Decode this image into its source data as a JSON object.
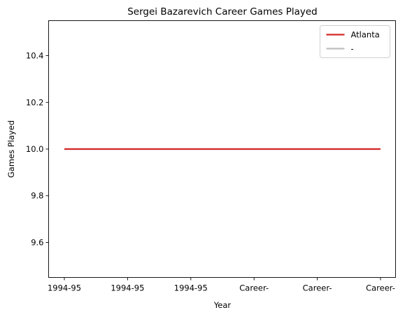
{
  "chart_data": {
    "type": "line",
    "title": "Sergei Bazarevich Career Games Played",
    "xlabel": "Year",
    "ylabel": "Games Played",
    "categories": [
      "1994-95",
      "1994-95",
      "1994-95",
      "Career-",
      "Career-",
      "Career-"
    ],
    "ylim": [
      9.45,
      10.55
    ],
    "yticks": [
      "9.6",
      "9.8",
      "10.0",
      "10.2",
      "10.4"
    ],
    "series": [
      {
        "name": "Atlanta",
        "color": "#d62728",
        "values": [
          10,
          10,
          10,
          10,
          10,
          10
        ]
      },
      {
        "name": "-",
        "color": "#bfbfbf",
        "values": [
          10,
          10,
          10,
          10,
          10,
          10
        ]
      }
    ],
    "legend_position": "top-right",
    "grid": false
  }
}
